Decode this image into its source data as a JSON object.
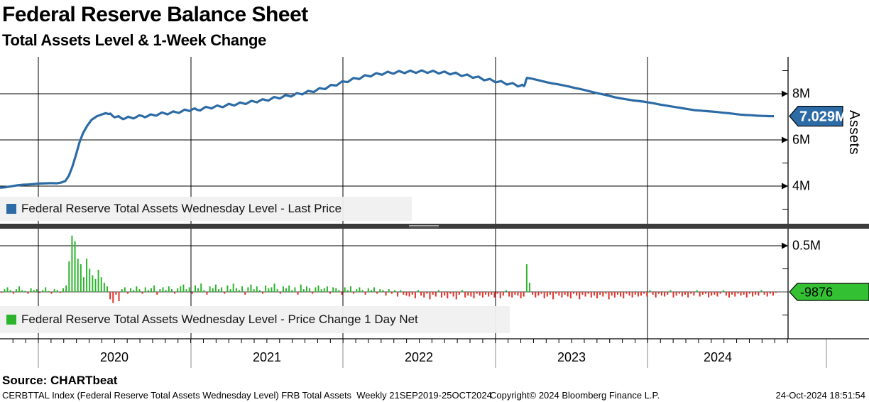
{
  "header": {
    "title": "Federal Reserve Balance Sheet",
    "subtitle": "Total Assets Level & 1-Week Change"
  },
  "colors": {
    "line_blue": "#2c6ba5",
    "bar_up_green": "#2cb52c",
    "bar_down_red": "#e23028",
    "badge_blue": "#2c6ba5",
    "badge_green": "#33c133",
    "grid": "#000000",
    "legend_bg": "#f0f0f0"
  },
  "panel_top": {
    "axis_title": "Assets",
    "ticks": [
      {
        "label": "8M",
        "value": 8
      },
      {
        "label": "6M",
        "value": 6
      },
      {
        "label": "4M",
        "value": 4
      }
    ],
    "minor_tick_values": [
      9,
      5,
      3
    ],
    "last_price_badge": "7.029M",
    "legend_text": "Federal Reserve Total Assets Wednesday Level - Last Price"
  },
  "panel_bottom": {
    "ticks": [
      {
        "label": "0.5M",
        "value": 0.5
      }
    ],
    "minor_tick_values": [
      0.25,
      -0.25
    ],
    "last_change_badge": "-9876",
    "legend_text": "Federal Reserve Total Assets Wednesday Level - Price Change 1 Day Net"
  },
  "x_axis": {
    "years": [
      "2020",
      "2021",
      "2022",
      "2023",
      "2024"
    ],
    "range_text": "21SEP2019-25OCT2024"
  },
  "source_label": "Source: CHARTbeat",
  "footer": {
    "left": "CERBTTAL Index (Federal Reserve Total Assets Wednesday Level) FRB Total Assets  Weekly 21SEP2019-25OCT2024",
    "center": "Copyright© 2024 Bloomberg Finance L.P.",
    "right": "24-Oct-2024 18:51:54"
  },
  "chart_data": [
    {
      "type": "line",
      "name": "Federal Reserve Total Assets Wednesday Level - Last Price",
      "unit": "M",
      "ylim": [
        2.3,
        9.6
      ],
      "ytick_values": [
        4,
        6,
        8
      ],
      "last_value": 7.029,
      "points": [
        [
          0,
          3.93
        ],
        [
          8,
          3.95
        ],
        [
          16,
          3.99
        ],
        [
          24,
          4.03
        ],
        [
          32,
          4.06
        ],
        [
          40,
          4.07
        ],
        [
          48,
          4.09
        ],
        [
          56,
          4.11
        ],
        [
          64,
          4.12
        ],
        [
          72,
          4.13
        ],
        [
          80,
          4.12
        ],
        [
          86,
          4.15
        ],
        [
          92,
          4.22
        ],
        [
          97,
          4.45
        ],
        [
          102,
          4.85
        ],
        [
          107,
          5.35
        ],
        [
          112,
          5.9
        ],
        [
          117,
          6.3
        ],
        [
          123,
          6.62
        ],
        [
          129,
          6.87
        ],
        [
          136,
          7.02
        ],
        [
          143,
          7.1
        ],
        [
          149,
          7.16
        ],
        [
          153,
          7.12
        ],
        [
          158,
          7.06
        ],
        [
          164,
          7.0
        ],
        [
          170,
          6.96
        ],
        [
          177,
          6.94
        ],
        [
          184,
          6.97
        ],
        [
          192,
          6.99
        ],
        [
          200,
          7.04
        ],
        [
          208,
          7.03
        ],
        [
          216,
          7.08
        ],
        [
          224,
          7.12
        ],
        [
          232,
          7.15
        ],
        [
          240,
          7.17
        ],
        [
          248,
          7.2
        ],
        [
          256,
          7.24
        ],
        [
          264,
          7.28
        ],
        [
          271,
          7.33
        ],
        [
          278,
          7.3
        ],
        [
          286,
          7.36
        ],
        [
          294,
          7.4
        ],
        [
          302,
          7.43
        ],
        [
          310,
          7.45
        ],
        [
          318,
          7.49
        ],
        [
          326,
          7.53
        ],
        [
          334,
          7.55
        ],
        [
          342,
          7.59
        ],
        [
          350,
          7.62
        ],
        [
          358,
          7.66
        ],
        [
          366,
          7.7
        ],
        [
          374,
          7.73
        ],
        [
          382,
          7.78
        ],
        [
          390,
          7.83
        ],
        [
          398,
          7.86
        ],
        [
          406,
          7.91
        ],
        [
          414,
          7.95
        ],
        [
          422,
          8.0
        ],
        [
          430,
          8.05
        ],
        [
          438,
          8.1
        ],
        [
          446,
          8.16
        ],
        [
          454,
          8.22
        ],
        [
          462,
          8.29
        ],
        [
          470,
          8.37
        ],
        [
          478,
          8.45
        ],
        [
          486,
          8.52
        ],
        [
          494,
          8.6
        ],
        [
          502,
          8.66
        ],
        [
          510,
          8.72
        ],
        [
          518,
          8.78
        ],
        [
          526,
          8.82
        ],
        [
          534,
          8.86
        ],
        [
          542,
          8.89
        ],
        [
          550,
          8.91
        ],
        [
          558,
          8.93
        ],
        [
          566,
          8.94
        ],
        [
          574,
          8.95
        ],
        [
          582,
          8.95
        ],
        [
          590,
          8.96
        ],
        [
          598,
          8.96
        ],
        [
          606,
          8.95
        ],
        [
          614,
          8.94
        ],
        [
          622,
          8.92
        ],
        [
          630,
          8.9
        ],
        [
          638,
          8.88
        ],
        [
          646,
          8.84
        ],
        [
          654,
          8.8
        ],
        [
          662,
          8.76
        ],
        [
          670,
          8.72
        ],
        [
          678,
          8.66
        ],
        [
          686,
          8.61
        ],
        [
          694,
          8.57
        ],
        [
          702,
          8.52
        ],
        [
          710,
          8.47
        ],
        [
          718,
          8.43
        ],
        [
          726,
          8.39
        ],
        [
          733,
          8.35
        ],
        [
          738,
          8.33
        ],
        [
          741,
          8.6
        ],
        [
          744,
          8.68
        ],
        [
          748,
          8.66
        ],
        [
          754,
          8.62
        ],
        [
          762,
          8.56
        ],
        [
          770,
          8.5
        ],
        [
          778,
          8.45
        ],
        [
          786,
          8.41
        ],
        [
          794,
          8.36
        ],
        [
          802,
          8.31
        ],
        [
          810,
          8.25
        ],
        [
          818,
          8.2
        ],
        [
          826,
          8.14
        ],
        [
          834,
          8.08
        ],
        [
          842,
          8.02
        ],
        [
          850,
          7.97
        ],
        [
          858,
          7.91
        ],
        [
          866,
          7.85
        ],
        [
          874,
          7.8
        ],
        [
          882,
          7.76
        ],
        [
          890,
          7.72
        ],
        [
          898,
          7.69
        ],
        [
          906,
          7.66
        ],
        [
          914,
          7.62
        ],
        [
          922,
          7.58
        ],
        [
          930,
          7.53
        ],
        [
          938,
          7.49
        ],
        [
          946,
          7.45
        ],
        [
          954,
          7.41
        ],
        [
          962,
          7.37
        ],
        [
          970,
          7.33
        ],
        [
          978,
          7.29
        ],
        [
          986,
          7.27
        ],
        [
          994,
          7.25
        ],
        [
          1002,
          7.23
        ],
        [
          1010,
          7.21
        ],
        [
          1018,
          7.18
        ],
        [
          1026,
          7.16
        ],
        [
          1034,
          7.13
        ],
        [
          1042,
          7.1
        ],
        [
          1050,
          7.08
        ],
        [
          1058,
          7.07
        ],
        [
          1066,
          7.05
        ],
        [
          1074,
          7.04
        ],
        [
          1082,
          7.03
        ],
        [
          1090,
          7.029
        ]
      ]
    },
    {
      "type": "bar",
      "name": "Federal Reserve Total Assets Wednesday Level - Price Change 1 Day Net",
      "unit": "M",
      "ylim": [
        -0.51,
        0.68
      ],
      "ytick_values": [
        0.5
      ],
      "last_value": -0.0099,
      "x0": -6,
      "step": 4.132,
      "values": [
        0.02,
        0.04,
        -0.01,
        0.03,
        0.05,
        0.02,
        -0.02,
        0.03,
        0.06,
        0.02,
        0.01,
        -0.02,
        0.04,
        0.02,
        0.03,
        -0.01,
        0.02,
        0.05,
        0.01,
        -0.02,
        0.03,
        0.02,
        -0.01,
        0.04,
        0.07,
        0.33,
        0.61,
        0.55,
        0.36,
        0.3,
        0.16,
        0.36,
        0.25,
        0.18,
        0.14,
        0.24,
        0.16,
        0.1,
        0.06,
        -0.08,
        -0.12,
        -0.03,
        -0.1,
        0.03,
        0.05,
        -0.02,
        0.04,
        0.02,
        0.06,
        0.03,
        -0.02,
        0.05,
        0.02,
        0.04,
        0.07,
        -0.03,
        0.03,
        0.05,
        0.02,
        0.06,
        0.03,
        -0.02,
        0.04,
        0.06,
        0.08,
        0.03,
        0.05,
        -0.02,
        0.07,
        0.04,
        0.09,
        0.02,
        -0.03,
        0.06,
        0.04,
        0.08,
        0.03,
        0.05,
        -0.02,
        0.07,
        0.03,
        0.09,
        0.04,
        0.02,
        0.06,
        -0.03,
        0.05,
        0.08,
        0.03,
        0.06,
        0.02,
        -0.02,
        0.07,
        0.04,
        0.05,
        0.09,
        0.03,
        -0.02,
        0.06,
        0.04,
        0.07,
        0.02,
        0.05,
        -0.03,
        0.08,
        0.03,
        0.06,
        0.04,
        -0.02,
        0.05,
        0.07,
        0.03,
        0.04,
        0.06,
        -0.02,
        0.05,
        0.04,
        0.02,
        -0.03,
        0.05,
        0.02,
        0.06,
        -0.02,
        0.03,
        0.05,
        0.02,
        -0.03,
        0.04,
        0.02,
        0.05,
        -0.02,
        0.03,
        0.02,
        -0.04,
        0.03,
        -0.02,
        0.02,
        -0.05,
        0.02,
        -0.03,
        -0.04,
        -0.05,
        -0.03,
        -0.07,
        0.02,
        -0.04,
        -0.06,
        -0.02,
        -0.08,
        -0.03,
        -0.05,
        0.02,
        -0.06,
        -0.04,
        -0.07,
        -0.02,
        -0.05,
        -0.08,
        -0.03,
        0.02,
        -0.06,
        -0.04,
        -0.05,
        -0.07,
        -0.02,
        -0.04,
        -0.06,
        -0.03,
        -0.05,
        -0.03,
        -0.06,
        -0.02,
        -0.07,
        -0.04,
        0.02,
        -0.05,
        -0.06,
        -0.03,
        -0.04,
        -0.07,
        -0.05,
        0.3,
        0.1,
        -0.03,
        -0.06,
        -0.04,
        -0.02,
        -0.07,
        -0.05,
        -0.03,
        -0.08,
        -0.02,
        -0.04,
        -0.06,
        -0.03,
        -0.05,
        -0.07,
        -0.02,
        -0.04,
        -0.08,
        -0.03,
        -0.05,
        -0.02,
        -0.06,
        -0.04,
        -0.07,
        -0.03,
        -0.05,
        -0.02,
        -0.08,
        -0.04,
        -0.06,
        -0.03,
        -0.05,
        -0.07,
        -0.02,
        -0.04,
        -0.06,
        -0.03,
        -0.05,
        -0.04,
        -0.02,
        -0.05,
        0.02,
        -0.03,
        -0.06,
        -0.02,
        -0.04,
        -0.05,
        -0.03,
        0.02,
        -0.06,
        -0.04,
        -0.02,
        -0.05,
        -0.03,
        -0.06,
        -0.02,
        -0.04,
        0.02,
        -0.05,
        -0.03,
        -0.02,
        -0.06,
        -0.04,
        -0.03,
        -0.05,
        -0.02,
        0.02,
        -0.04,
        -0.06,
        -0.03,
        -0.05,
        -0.02,
        -0.04,
        -0.03,
        -0.06,
        -0.02,
        -0.05,
        -0.03,
        -0.04,
        0.02,
        -0.03,
        -0.05,
        -0.02,
        -0.04,
        -0.0099
      ]
    }
  ]
}
